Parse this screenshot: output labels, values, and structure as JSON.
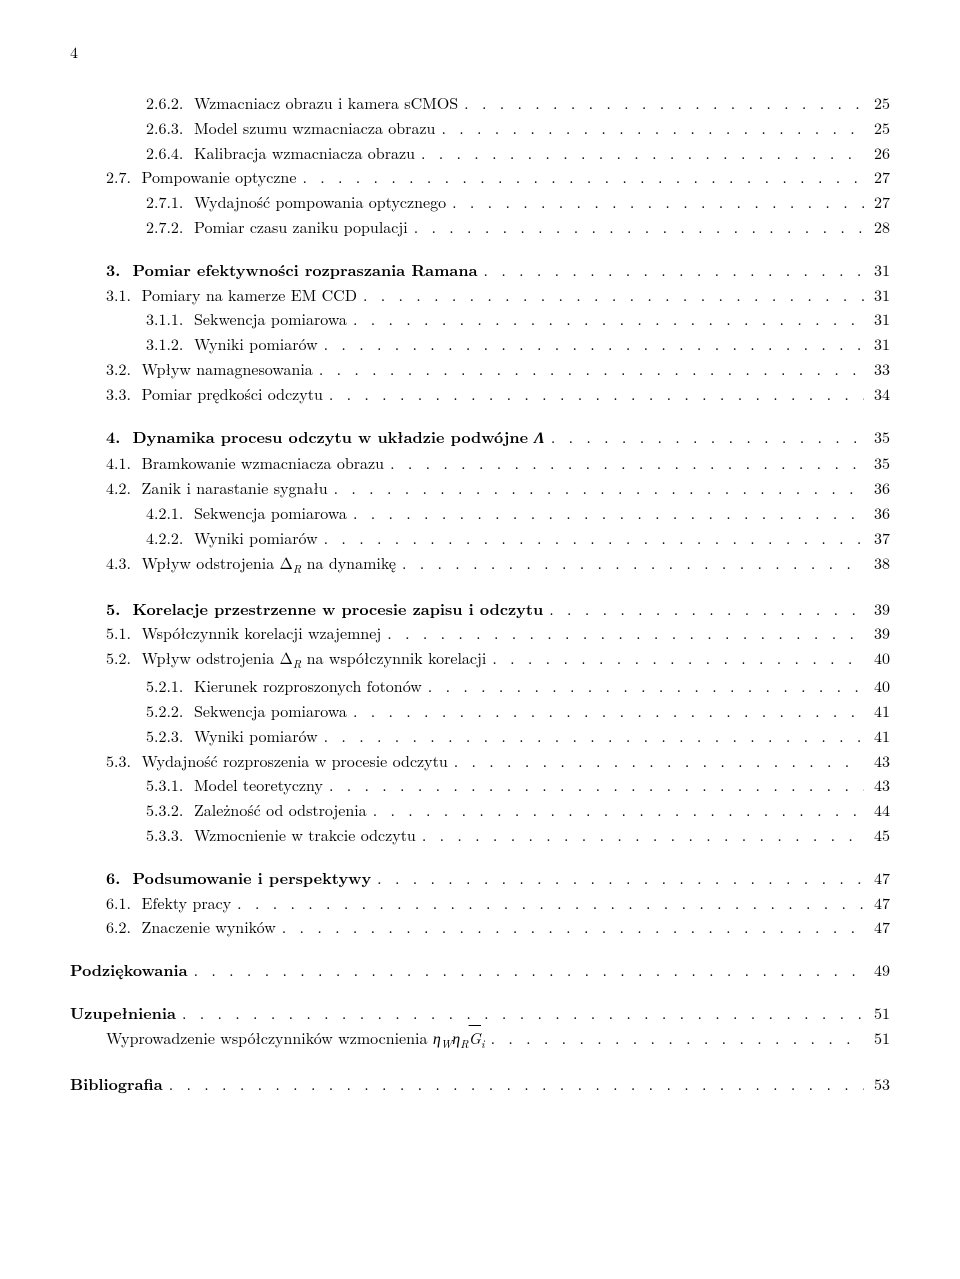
{
  "page_number": "4",
  "blocks": [
    {
      "entries": [
        {
          "level": 3,
          "num": "2.6.2.",
          "title": "Wzmacniacz obrazu i kamera sCMOS",
          "page": "25"
        },
        {
          "level": 3,
          "num": "2.6.3.",
          "title": "Model szumu wzmacniacza obrazu",
          "page": "25"
        },
        {
          "level": 3,
          "num": "2.6.4.",
          "title": "Kalibracja wzmacniacza obrazu",
          "page": "26"
        },
        {
          "level": 2,
          "num": "2.7.",
          "title": "Pompowanie optyczne",
          "page": "27"
        },
        {
          "level": 3,
          "num": "2.7.1.",
          "title": "Wydajność pompowania optycznego",
          "page": "27"
        },
        {
          "level": 3,
          "num": "2.7.2.",
          "title": "Pomiar czasu zaniku populacji",
          "page": "28"
        }
      ]
    },
    {
      "entries": [
        {
          "level": 1,
          "bold": true,
          "num": "3.",
          "title": "Pomiar efektywności rozpraszania Ramana",
          "page": "31"
        },
        {
          "level": 2,
          "num": "3.1.",
          "title": "Pomiary na kamerze EM CCD",
          "page": "31"
        },
        {
          "level": 3,
          "num": "3.1.1.",
          "title": "Sekwencja pomiarowa",
          "page": "31"
        },
        {
          "level": 3,
          "num": "3.1.2.",
          "title": "Wyniki pomiarów",
          "page": "31"
        },
        {
          "level": 2,
          "num": "3.2.",
          "title": "Wpływ namagnesowania",
          "page": "33"
        },
        {
          "level": 2,
          "num": "3.3.",
          "title": "Pomiar prędkości odczytu",
          "page": "34"
        }
      ]
    },
    {
      "entries": [
        {
          "level": 1,
          "bold": true,
          "num": "4.",
          "title_html": "Dynamika procesu odczytu w układzie podwójne <span class=\"math-it\" style=\"font-family:serif\">Λ</span>",
          "page": "35"
        },
        {
          "level": 2,
          "num": "4.1.",
          "title": "Bramkowanie wzmacniacza obrazu",
          "page": "35"
        },
        {
          "level": 2,
          "num": "4.2.",
          "title": "Zanik i narastanie sygnału",
          "page": "36"
        },
        {
          "level": 3,
          "num": "4.2.1.",
          "title": "Sekwencja pomiarowa",
          "page": "36"
        },
        {
          "level": 3,
          "num": "4.2.2.",
          "title": "Wyniki pomiarów",
          "page": "37"
        },
        {
          "level": 2,
          "num": "4.3.",
          "title_html": "Wpływ odstrojenia Δ<span class=\"math-sub\">R</span> na dynamikę",
          "page": "38"
        }
      ]
    },
    {
      "entries": [
        {
          "level": 1,
          "bold": true,
          "num": "5.",
          "title": "Korelacje przestrzenne w procesie zapisu i odczytu",
          "page": "39"
        },
        {
          "level": 2,
          "num": "5.1.",
          "title": "Współczynnik korelacji wzajemnej",
          "page": "39"
        },
        {
          "level": 2,
          "num": "5.2.",
          "title_html": "Wpływ odstrojenia Δ<span class=\"math-sub\">R</span> na współczynnik korelacji",
          "page": "40"
        },
        {
          "level": 3,
          "num": "5.2.1.",
          "title": "Kierunek rozproszonych fotonów",
          "page": "40"
        },
        {
          "level": 3,
          "num": "5.2.2.",
          "title": "Sekwencja pomiarowa",
          "page": "41"
        },
        {
          "level": 3,
          "num": "5.2.3.",
          "title": "Wyniki pomiarów",
          "page": "41"
        },
        {
          "level": 2,
          "num": "5.3.",
          "title": "Wydajność rozproszenia w procesie odczytu",
          "page": "43"
        },
        {
          "level": 3,
          "num": "5.3.1.",
          "title": "Model teoretyczny",
          "page": "43"
        },
        {
          "level": 3,
          "num": "5.3.2.",
          "title": "Zależność od odstrojenia",
          "page": "44"
        },
        {
          "level": 3,
          "num": "5.3.3.",
          "title": "Wzmocnienie w trakcie odczytu",
          "page": "45"
        }
      ]
    },
    {
      "entries": [
        {
          "level": 1,
          "bold": true,
          "num": "6.",
          "title": "Podsumowanie i perspektywy",
          "page": "47"
        },
        {
          "level": 2,
          "num": "6.1.",
          "title": "Efekty pracy",
          "page": "47"
        },
        {
          "level": 2,
          "num": "6.2.",
          "title": "Znaczenie wyników",
          "page": "47"
        }
      ]
    },
    {
      "entries": [
        {
          "level": 0,
          "bold": true,
          "num": "",
          "title": "Podziękowania",
          "page": "49"
        }
      ]
    },
    {
      "entries": [
        {
          "level": 0,
          "bold": true,
          "num": "",
          "title": "Uzupełnienia",
          "page": "51"
        },
        {
          "level": "unnum2",
          "num": "",
          "title_html": "Wyprowadzenie współczynników wzmocnienia <span class=\"math-it\">η</span><span class=\"math-sub\">W</span><span class=\"math-it\">η</span><span class=\"math-sub\">R</span><span class=\"overline\">G</span><span class=\"math-sub\">i</span>",
          "page": "51"
        }
      ]
    },
    {
      "entries": [
        {
          "level": 0,
          "bold": true,
          "num": "",
          "title": "Bibliografia",
          "page": "53"
        }
      ]
    }
  ]
}
